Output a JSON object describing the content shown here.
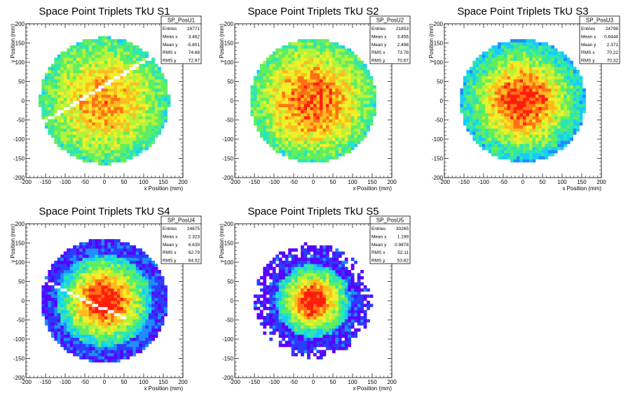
{
  "chart_data": [
    {
      "type": "heatmap",
      "title": "Space Point Triplets TkU S1",
      "xlabel": "x Position (mm)",
      "ylabel": "y Position (mm)",
      "xlim": [
        -200,
        200
      ],
      "ylim": [
        -200,
        200
      ],
      "xticks": [
        -200,
        -150,
        -100,
        -50,
        0,
        50,
        100,
        150,
        200
      ],
      "yticks": [
        -200,
        -150,
        -100,
        -50,
        0,
        50,
        100,
        150,
        200
      ],
      "histogram": "SP_PosU1",
      "stats": [
        {
          "label": "Entries",
          "value": "16771"
        },
        {
          "label": "Mean x",
          "value": "3.462"
        },
        {
          "label": "Mean y",
          "value": "-5.801"
        },
        {
          "label": "RMS x",
          "value": "74.68"
        },
        {
          "label": "RMS y",
          "value": "72.97"
        }
      ],
      "radius": 165,
      "sigma": 130,
      "dip": 0.78,
      "gap": true
    },
    {
      "type": "heatmap",
      "title": "Space Point Triplets TkU S2",
      "xlabel": "x Position (mm)",
      "ylabel": "y Position (mm)",
      "xlim": [
        -200,
        200
      ],
      "ylim": [
        -200,
        200
      ],
      "xticks": [
        -200,
        -150,
        -100,
        -50,
        0,
        50,
        100,
        150,
        200
      ],
      "yticks": [
        -200,
        -150,
        -100,
        -50,
        0,
        50,
        100,
        150,
        200
      ],
      "histogram": "SP_PosU2",
      "stats": [
        {
          "label": "Entries",
          "value": "21853"
        },
        {
          "label": "Mean x",
          "value": "3.456"
        },
        {
          "label": "Mean y",
          "value": "2.498"
        },
        {
          "label": "RMS x",
          "value": "73.78"
        },
        {
          "label": "RMS y",
          "value": "70.67"
        }
      ],
      "radius": 162,
      "sigma": 120,
      "dip": 0.88,
      "gap": false
    },
    {
      "type": "heatmap",
      "title": "Space Point Triplets TkU S3",
      "xlabel": "x Position (mm)",
      "ylabel": "y Position (mm)",
      "xlim": [
        -200,
        200
      ],
      "ylim": [
        -200,
        200
      ],
      "xticks": [
        -200,
        -150,
        -100,
        -50,
        0,
        50,
        100,
        150,
        200
      ],
      "yticks": [
        -200,
        -150,
        -100,
        -50,
        0,
        50,
        100,
        150,
        200
      ],
      "histogram": "SP_PosU3",
      "stats": [
        {
          "label": "Entries",
          "value": "24798"
        },
        {
          "label": "Mean x",
          "value": "0.6444"
        },
        {
          "label": "Mean y",
          "value": "2.371"
        },
        {
          "label": "RMS x",
          "value": "70.22"
        },
        {
          "label": "RMS y",
          "value": "70.32"
        }
      ],
      "radius": 160,
      "sigma": 95,
      "dip": 0.95,
      "gap": false
    },
    {
      "type": "heatmap",
      "title": "Space Point Triplets TkU S4",
      "xlabel": "x Position (mm)",
      "ylabel": "y Position (mm)",
      "xlim": [
        -200,
        200
      ],
      "ylim": [
        -200,
        200
      ],
      "xticks": [
        -200,
        -150,
        -100,
        -50,
        0,
        50,
        100,
        150,
        200
      ],
      "yticks": [
        -200,
        -150,
        -100,
        -50,
        0,
        50,
        100,
        150,
        200
      ],
      "histogram": "SP_PosU4",
      "stats": [
        {
          "label": "Entries",
          "value": "24875"
        },
        {
          "label": "Mean x",
          "value": "2.323"
        },
        {
          "label": "Mean y",
          "value": "6.639"
        },
        {
          "label": "RMS x",
          "value": "62.79"
        },
        {
          "label": "RMS y",
          "value": "64.02"
        }
      ],
      "radius": 162,
      "sigma": 72,
      "dip": 1.0,
      "gap": true
    },
    {
      "type": "heatmap",
      "title": "Space Point Triplets TkU S5",
      "xlabel": "x Position (mm)",
      "ylabel": "y Position (mm)",
      "xlim": [
        -200,
        200
      ],
      "ylim": [
        -200,
        200
      ],
      "xticks": [
        -200,
        -150,
        -100,
        -50,
        0,
        50,
        100,
        150,
        200
      ],
      "yticks": [
        -200,
        -150,
        -100,
        -50,
        0,
        50,
        100,
        150,
        200
      ],
      "histogram": "SP_PosU5",
      "stats": [
        {
          "label": "Entries",
          "value": "30265"
        },
        {
          "label": "Mean x",
          "value": "1.199"
        },
        {
          "label": "Mean y",
          "value": "0.9878"
        },
        {
          "label": "RMS x",
          "value": "52.11"
        },
        {
          "label": "RMS y",
          "value": "53.82"
        }
      ],
      "radius": 150,
      "sigma": 55,
      "dip": 1.0,
      "gap": false
    }
  ],
  "palette": [
    "#5a00ff",
    "#2a3cff",
    "#1f8cff",
    "#16ccff",
    "#2ee6b0",
    "#60ee60",
    "#b4f23c",
    "#f0f028",
    "#ffbc1e",
    "#ff7014",
    "#ff1e0e"
  ]
}
